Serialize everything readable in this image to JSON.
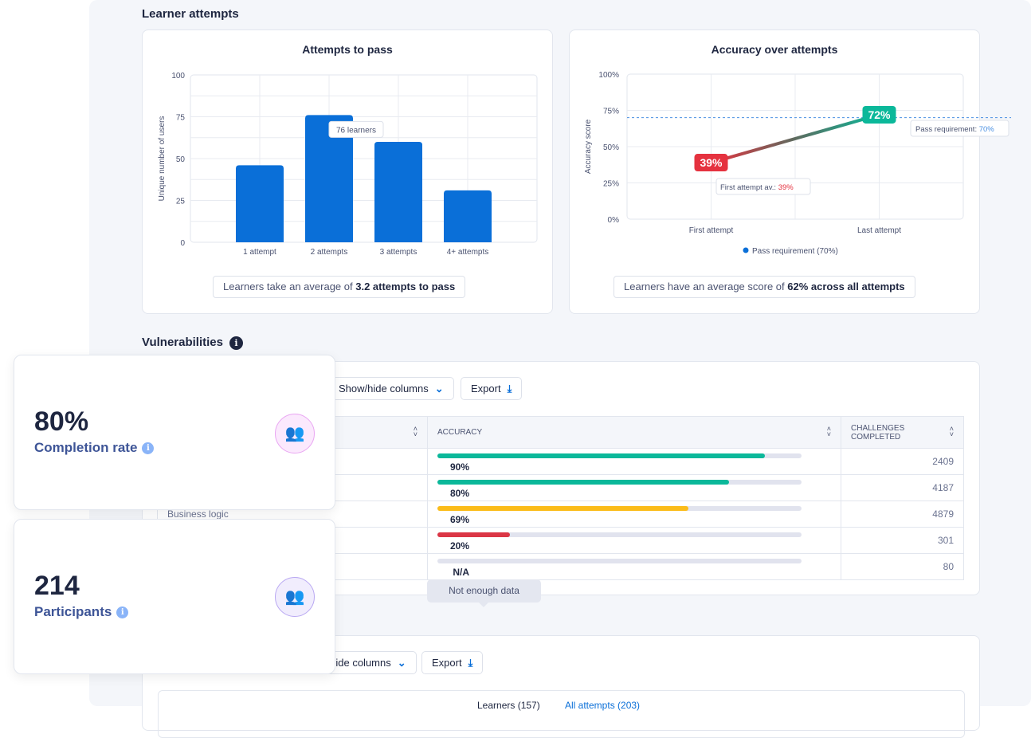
{
  "learner_attempts": {
    "heading": "Learner attempts"
  },
  "chart_data": [
    {
      "type": "bar",
      "title": "Attempts to pass",
      "ylabel": "Unique number of users",
      "xlabel": "",
      "categories": [
        "1 attempt",
        "2 attempts",
        "3 attempts",
        "4+ attempts"
      ],
      "values": [
        46,
        76,
        60,
        31
      ],
      "ylim": [
        0,
        100
      ],
      "yticks": [
        "0",
        "25",
        "50",
        "75",
        "100"
      ],
      "grid": true,
      "tooltip": "76 learners",
      "color": "#0a6fd8"
    },
    {
      "type": "line",
      "title": "Accuracy over attempts",
      "ylabel": "Accuracy score",
      "categories": [
        "First attempt",
        "Last attempt"
      ],
      "values": [
        39,
        72
      ],
      "point_labels": [
        "39%",
        "72%"
      ],
      "ylim": [
        0,
        100
      ],
      "yticks": [
        "0%",
        "25%",
        "50%",
        "75%",
        "100%"
      ],
      "grid": true,
      "pass_requirement": 70,
      "pass_label": "Pass requirement: ",
      "pass_value": "70%",
      "first_label": "First attempt av.: ",
      "first_value": "39%",
      "legend": "Pass requirement (70%)",
      "legend_position": "bottom",
      "colors": {
        "low": "#e5323f",
        "high": "#0bb89a",
        "pass": "#4a90e2"
      }
    }
  ],
  "summaries": {
    "attempts": {
      "prefix": "Learners take an average of ",
      "bold": "3.2 attempts to pass"
    },
    "accuracy": {
      "prefix": "Learners have an average score of ",
      "bold": "62% across all attempts"
    }
  },
  "vulnerabilities": {
    "heading": "Vulnerabilities",
    "show_hide": "Show/hide columns",
    "export": "Export",
    "columns": [
      "",
      "ACCURACY",
      "CHALLENGES COMPLETED"
    ],
    "rows": [
      {
        "name": "",
        "accuracy": 90,
        "label": "90%",
        "color": "#0bb89a",
        "challenges": "2409"
      },
      {
        "name": "",
        "accuracy": 80,
        "label": "80%",
        "color": "#0bb89a",
        "challenges": "4187"
      },
      {
        "name": "Business logic",
        "accuracy": 69,
        "label": "69%",
        "color": "#fbbc1a",
        "challenges": "4879"
      },
      {
        "name": "",
        "accuracy": 20,
        "label": "20%",
        "color": "#db3645",
        "challenges": "301"
      },
      {
        "name": "",
        "accuracy": 0,
        "label": "N/A",
        "color": "#e1e3ee",
        "challenges": "80"
      }
    ],
    "tooltip": "Not enough data"
  },
  "second_table": {
    "show_hide": "Show/hide columns",
    "export": "Export",
    "tabs": [
      "Learners (157)",
      "All attempts (203)"
    ]
  },
  "stats": [
    {
      "value": "80%",
      "label": "Completion rate",
      "icon": "users-icon",
      "color": "#e9a6f2"
    },
    {
      "value": "214",
      "label": "Participants",
      "icon": "users-icon",
      "color": "#b9a8f2"
    }
  ]
}
